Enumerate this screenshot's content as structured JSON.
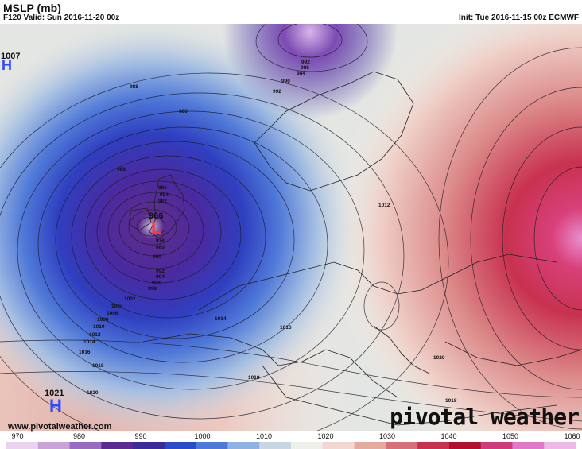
{
  "header": {
    "title": "MSLP (mb)",
    "valid": "F120 Valid: Sun 2016-11-20 00z",
    "init": "Init: Tue 2016-11-15 00z ECMWF"
  },
  "centers": [
    {
      "type": "L",
      "value": "966",
      "color": "#ff3333"
    },
    {
      "type": "H",
      "value": "1021",
      "color": "#2b4cff"
    },
    {
      "type": "H",
      "value": "1007",
      "color": "#2b4cff"
    }
  ],
  "isobar_labels": [
    "966",
    "976",
    "980",
    "982",
    "984",
    "986",
    "988",
    "990",
    "992",
    "994",
    "996",
    "998",
    "1002",
    "1004",
    "1006",
    "1008",
    "1010",
    "1012",
    "1014",
    "1016",
    "1018",
    "1020",
    "1012",
    "1014",
    "1016",
    "1018",
    "1020",
    "1018",
    "980",
    "984",
    "986",
    "990",
    "992",
    "988",
    "992"
  ],
  "footer": {
    "website": "www.pivotalweather.com",
    "brand": "pivotal weather"
  },
  "colorbar": {
    "ticks": [
      "970",
      "980",
      "990",
      "1000",
      "1010",
      "1020",
      "1030",
      "1040",
      "1050",
      "1060"
    ],
    "colors": [
      "#e9d3ef",
      "#c8a3d8",
      "#9a6cc0",
      "#5b2c8f",
      "#3a2a9a",
      "#2b4cc9",
      "#4f79d8",
      "#8fb2e5",
      "#c9d6e3",
      "#eeeeea",
      "#f1d7cf",
      "#e6a9a0",
      "#d8707a",
      "#c8324f",
      "#b0102e",
      "#cf3a7a",
      "#e07ac8",
      "#f0b8e6"
    ]
  }
}
